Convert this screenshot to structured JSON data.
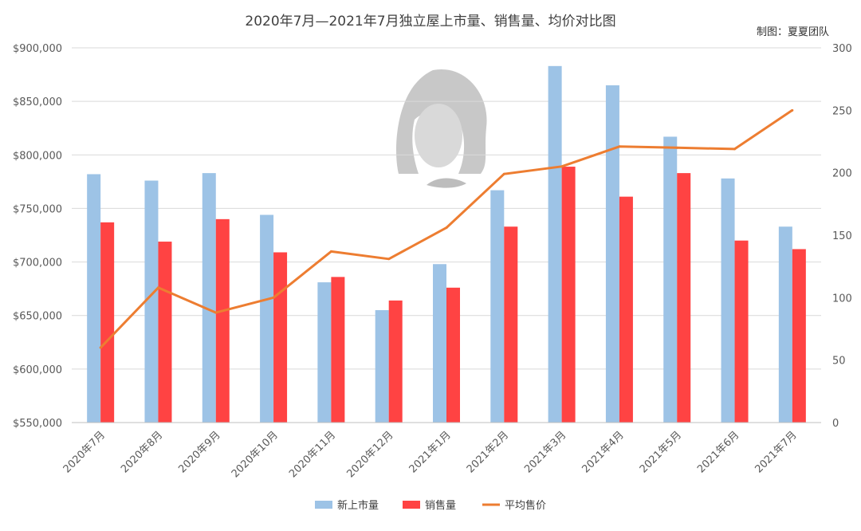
{
  "chart_data": {
    "type": "bar",
    "title": "2020年7月—2021年7月独立屋上市量、销售量、均价对比图",
    "credit": "制图：夏夏团队",
    "categories": [
      "2020年7月",
      "2020年8月",
      "2020年9月",
      "2020年10月",
      "2020年11月",
      "2020年12月",
      "2021年1月",
      "2021年2月",
      "2021年3月",
      "2021年4月",
      "2021年5月",
      "2021年6月",
      "2021年7月"
    ],
    "y_left": {
      "min": 550000,
      "max": 900000,
      "step": 50000,
      "tick_labels": [
        "$550,000",
        "$600,000",
        "$650,000",
        "$700,000",
        "$750,000",
        "$800,000",
        "$850,000",
        "$900,000"
      ]
    },
    "y_right": {
      "min": 0,
      "max": 300,
      "step": 50,
      "tick_labels": [
        "0",
        "50",
        "100",
        "150",
        "200",
        "250",
        "300"
      ]
    },
    "series": [
      {
        "name": "新上市量",
        "kind": "bar",
        "axis": "left",
        "color": "#9dc3e6",
        "values": [
          782000,
          776000,
          783000,
          744000,
          681000,
          655000,
          698000,
          767000,
          883000,
          865000,
          817000,
          778000,
          733000
        ]
      },
      {
        "name": "销售量",
        "kind": "bar",
        "axis": "left",
        "color": "#ff4343",
        "values": [
          737000,
          719000,
          740000,
          709000,
          686000,
          664000,
          676000,
          733000,
          789000,
          761000,
          783000,
          720000,
          712000
        ]
      },
      {
        "name": "平均售价",
        "kind": "line",
        "axis": "right",
        "color": "#ed7d31",
        "values": [
          60,
          108,
          88,
          100,
          137,
          131,
          156,
          199,
          205,
          221,
          220,
          219,
          250
        ]
      }
    ],
    "grid": true,
    "legend_position": "bottom"
  }
}
